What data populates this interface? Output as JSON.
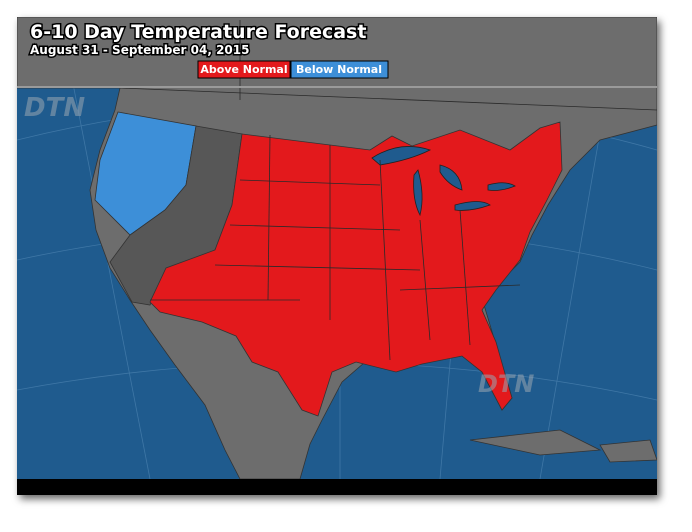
{
  "header": {
    "title": "6-10 Day Temperature Forecast",
    "subtitle": "August 31 - September 04, 2015"
  },
  "legend": [
    {
      "label": "Above Normal",
      "color": "#e3191c"
    },
    {
      "label": "Below Normal",
      "color": "#3d8fd8"
    }
  ],
  "watermarks": [
    "DTN",
    "DTN"
  ]
}
